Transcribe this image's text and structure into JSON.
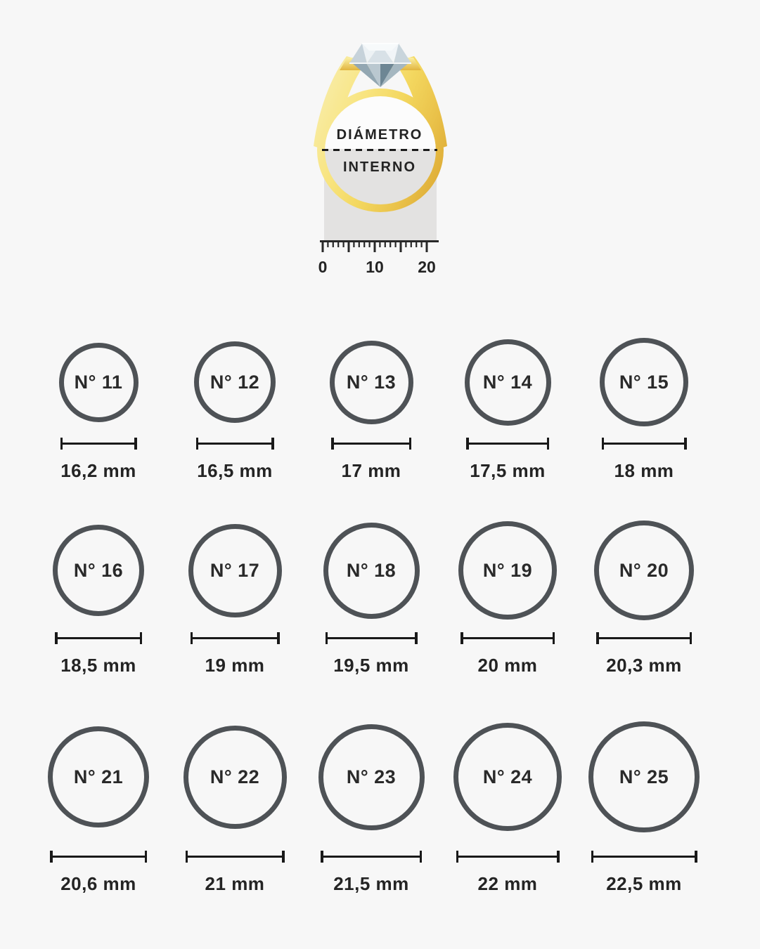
{
  "page": {
    "background": "#f7f7f7"
  },
  "diagram": {
    "label_line1": "DIÁMETRO",
    "label_line2": "INTERNO",
    "ruler_labels": [
      "0",
      "10",
      "20"
    ],
    "colors": {
      "gold_light": "#f8eca6",
      "gold_mid": "#f3d75f",
      "gold_dark": "#dfae38",
      "measure_zone": "#e3e2e1",
      "dash_line": "#1c1c1c",
      "ruler_ink": "#282828",
      "diamond_light": "#eef3f6",
      "diamond_dark": "#6d8694"
    }
  },
  "chart": {
    "circle_stroke": "#4e5256",
    "text_color": "#2a2a2a",
    "measure_line_color": "#191919"
  },
  "sizes": [
    {
      "label": "N° 11",
      "value": "16,2 mm",
      "mm": 16.2
    },
    {
      "label": "N° 12",
      "value": "16,5 mm",
      "mm": 16.5
    },
    {
      "label": "N° 13",
      "value": "17 mm",
      "mm": 17
    },
    {
      "label": "N° 14",
      "value": "17,5 mm",
      "mm": 17.5
    },
    {
      "label": "N° 15",
      "value": "18 mm",
      "mm": 18
    },
    {
      "label": "N° 16",
      "value": "18,5 mm",
      "mm": 18.5
    },
    {
      "label": "N° 17",
      "value": "19 mm",
      "mm": 19
    },
    {
      "label": "N° 18",
      "value": "19,5 mm",
      "mm": 19.5
    },
    {
      "label": "N° 19",
      "value": "20 mm",
      "mm": 20
    },
    {
      "label": "N° 20",
      "value": "20,3 mm",
      "mm": 20.3
    },
    {
      "label": "N° 21",
      "value": "20,6 mm",
      "mm": 20.6
    },
    {
      "label": "N° 22",
      "value": "21 mm",
      "mm": 21
    },
    {
      "label": "N° 23",
      "value": "21,5 mm",
      "mm": 21.5
    },
    {
      "label": "N° 24",
      "value": "22 mm",
      "mm": 22
    },
    {
      "label": "N° 25",
      "value": "22,5 mm",
      "mm": 22.5
    }
  ]
}
